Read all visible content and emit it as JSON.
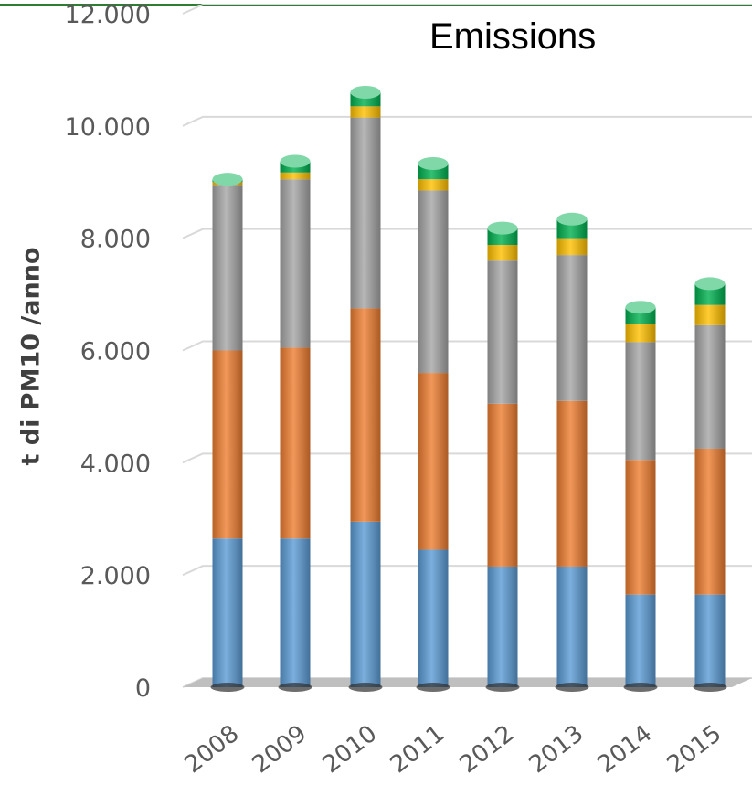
{
  "chart_data": {
    "type": "bar",
    "stacked": true,
    "title": "Emissions",
    "xlabel": "",
    "ylabel": "t di PM10 /anno",
    "categories": [
      "2008",
      "2009",
      "2010",
      "2011",
      "2012",
      "2013",
      "2014",
      "2015"
    ],
    "y_ticks": [
      "0",
      "2.000",
      "4.000",
      "6.000",
      "8.000",
      "10.000",
      "12.000"
    ],
    "ylim": [
      0,
      12000
    ],
    "grid": true,
    "legend": "none",
    "series": [
      {
        "color": "#5b9bd5",
        "values": [
          2650,
          2650,
          2950,
          2450,
          2150,
          2150,
          1650,
          1650
        ]
      },
      {
        "color": "#ed7d31",
        "values": [
          3350,
          3400,
          3800,
          3150,
          2900,
          2950,
          2400,
          2600
        ]
      },
      {
        "color": "#a5a5a5",
        "values": [
          2950,
          3000,
          3400,
          3250,
          2550,
          2600,
          2100,
          2200
        ]
      },
      {
        "color": "#ffc000",
        "values": [
          50,
          120,
          200,
          200,
          280,
          300,
          320,
          360
        ]
      },
      {
        "color": "#00b050",
        "values": [
          50,
          200,
          250,
          280,
          300,
          340,
          300,
          380
        ]
      }
    ]
  },
  "colors": {
    "grid": "#d9d9d9",
    "axis_text": "#595959",
    "top_rule": "#2e7d32"
  }
}
